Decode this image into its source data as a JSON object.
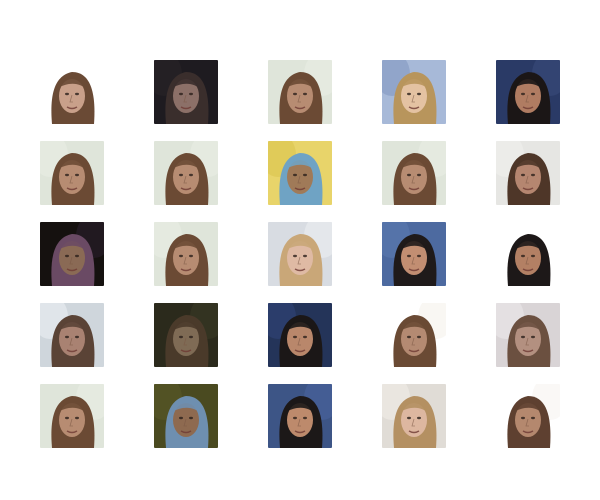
{
  "figure": {
    "rows": 5,
    "columns": 5,
    "tiles": [
      {
        "description_key": "pale-face-long-dark-hair-white-bg",
        "bg": "#ffffff",
        "hair": "#6a4a35",
        "skin": "#c9a08a",
        "accent": "#ffffff"
      },
      {
        "description_key": "face-dark-bg",
        "bg": "#1e1b20",
        "hair": "#3a2e2c",
        "skin": "#8c7068",
        "accent": "#2a2528"
      },
      {
        "description_key": "face-brown-hair-light-bg",
        "bg": "#dfe5da",
        "hair": "#6b4a34",
        "skin": "#b78c72",
        "accent": "#e9eee5"
      },
      {
        "description_key": "blonde-smiling-blue-bg",
        "bg": "#a7b9d8",
        "hair": "#b8955c",
        "skin": "#e4c2a2",
        "accent": "#7f96c0"
      },
      {
        "description_key": "dark-hair-smiling-dark-blue-bg",
        "bg": "#2a3a66",
        "hair": "#1b1616",
        "skin": "#b07c62",
        "accent": "#3a4c7c"
      },
      {
        "description_key": "face-brown-hair-light-bg",
        "bg": "#dfe5da",
        "hair": "#6b4a34",
        "skin": "#b78c72",
        "accent": "#e9eee5"
      },
      {
        "description_key": "face-brown-hair-light-bg",
        "bg": "#dfe5da",
        "hair": "#6b4a34",
        "skin": "#b78c72",
        "accent": "#e9eee5"
      },
      {
        "description_key": "yellow-bg-colorful-hair",
        "bg": "#e8d46a",
        "hair": "#6fa3c4",
        "skin": "#a07a58",
        "accent": "#d8c24a"
      },
      {
        "description_key": "face-brown-hair-light-bg",
        "bg": "#dfe5da",
        "hair": "#6b4a34",
        "skin": "#b78c72",
        "accent": "#e9eee5"
      },
      {
        "description_key": "face-brown-hair-light-bg-2",
        "bg": "#e6e6e3",
        "hair": "#4e3628",
        "skin": "#b58670",
        "accent": "#f0f0ee"
      },
      {
        "description_key": "dark-bg-colorful-hair",
        "bg": "#15110f",
        "hair": "#6a4a64",
        "skin": "#8a6a55",
        "accent": "#2b2030"
      },
      {
        "description_key": "face-brown-hair-light-bg",
        "bg": "#dfe5da",
        "hair": "#6b4a34",
        "skin": "#b78c72",
        "accent": "#e9eee5"
      },
      {
        "description_key": "blonde-light-bg",
        "bg": "#d8dce2",
        "hair": "#c9a778",
        "skin": "#dfbaa4",
        "accent": "#eef0f3"
      },
      {
        "description_key": "dark-hair-smiling-blue-bg",
        "bg": "#4d6aa0",
        "hair": "#1f1a1a",
        "skin": "#c28e72",
        "accent": "#5c7ab0"
      },
      {
        "description_key": "dark-hair-smiling-white-bg",
        "bg": "#ffffff",
        "hair": "#1d1818",
        "skin": "#b38064",
        "accent": "#ffffff"
      },
      {
        "description_key": "split-face-light-bg",
        "bg": "#cfd6dc",
        "hair": "#5a4336",
        "skin": "#a98272",
        "accent": "#eef2f6"
      },
      {
        "description_key": "face-greenish-dark-bg",
        "bg": "#2b2a1c",
        "hair": "#4a3a2a",
        "skin": "#7f6b55",
        "accent": "#3b3a26"
      },
      {
        "description_key": "dark-hair-smiling-navy-bg",
        "bg": "#243459",
        "hair": "#1b1717",
        "skin": "#b9876b",
        "accent": "#32457a"
      },
      {
        "description_key": "brown-hair-white-bg",
        "bg": "#ffffff",
        "hair": "#6a4a34",
        "skin": "#b48a72",
        "accent": "#f4f0ea"
      },
      {
        "description_key": "split-face-light-bg-2",
        "bg": "#d9d4d6",
        "hair": "#6b5040",
        "skin": "#b39080",
        "accent": "#eceaec"
      },
      {
        "description_key": "face-brown-hair-light-bg",
        "bg": "#dfe5da",
        "hair": "#6b4a34",
        "skin": "#b78c72",
        "accent": "#e9eee5"
      },
      {
        "description_key": "olive-bg-colorful-hair",
        "bg": "#4a4a20",
        "hair": "#6e8fb0",
        "skin": "#8e6a50",
        "accent": "#5a5a28"
      },
      {
        "description_key": "dark-hair-smiling-blue-bg",
        "bg": "#3d5586",
        "hair": "#1c1818",
        "skin": "#bd8a6c",
        "accent": "#4a64a0"
      },
      {
        "description_key": "blonde-light-bg-2",
        "bg": "#e0dcd6",
        "hair": "#b49062",
        "skin": "#ddb7a0",
        "accent": "#f2eee9"
      },
      {
        "description_key": "brown-hair-white-bg-2",
        "bg": "#ffffff",
        "hair": "#5e4030",
        "skin": "#b4886e",
        "accent": "#f6f2ee"
      }
    ]
  }
}
